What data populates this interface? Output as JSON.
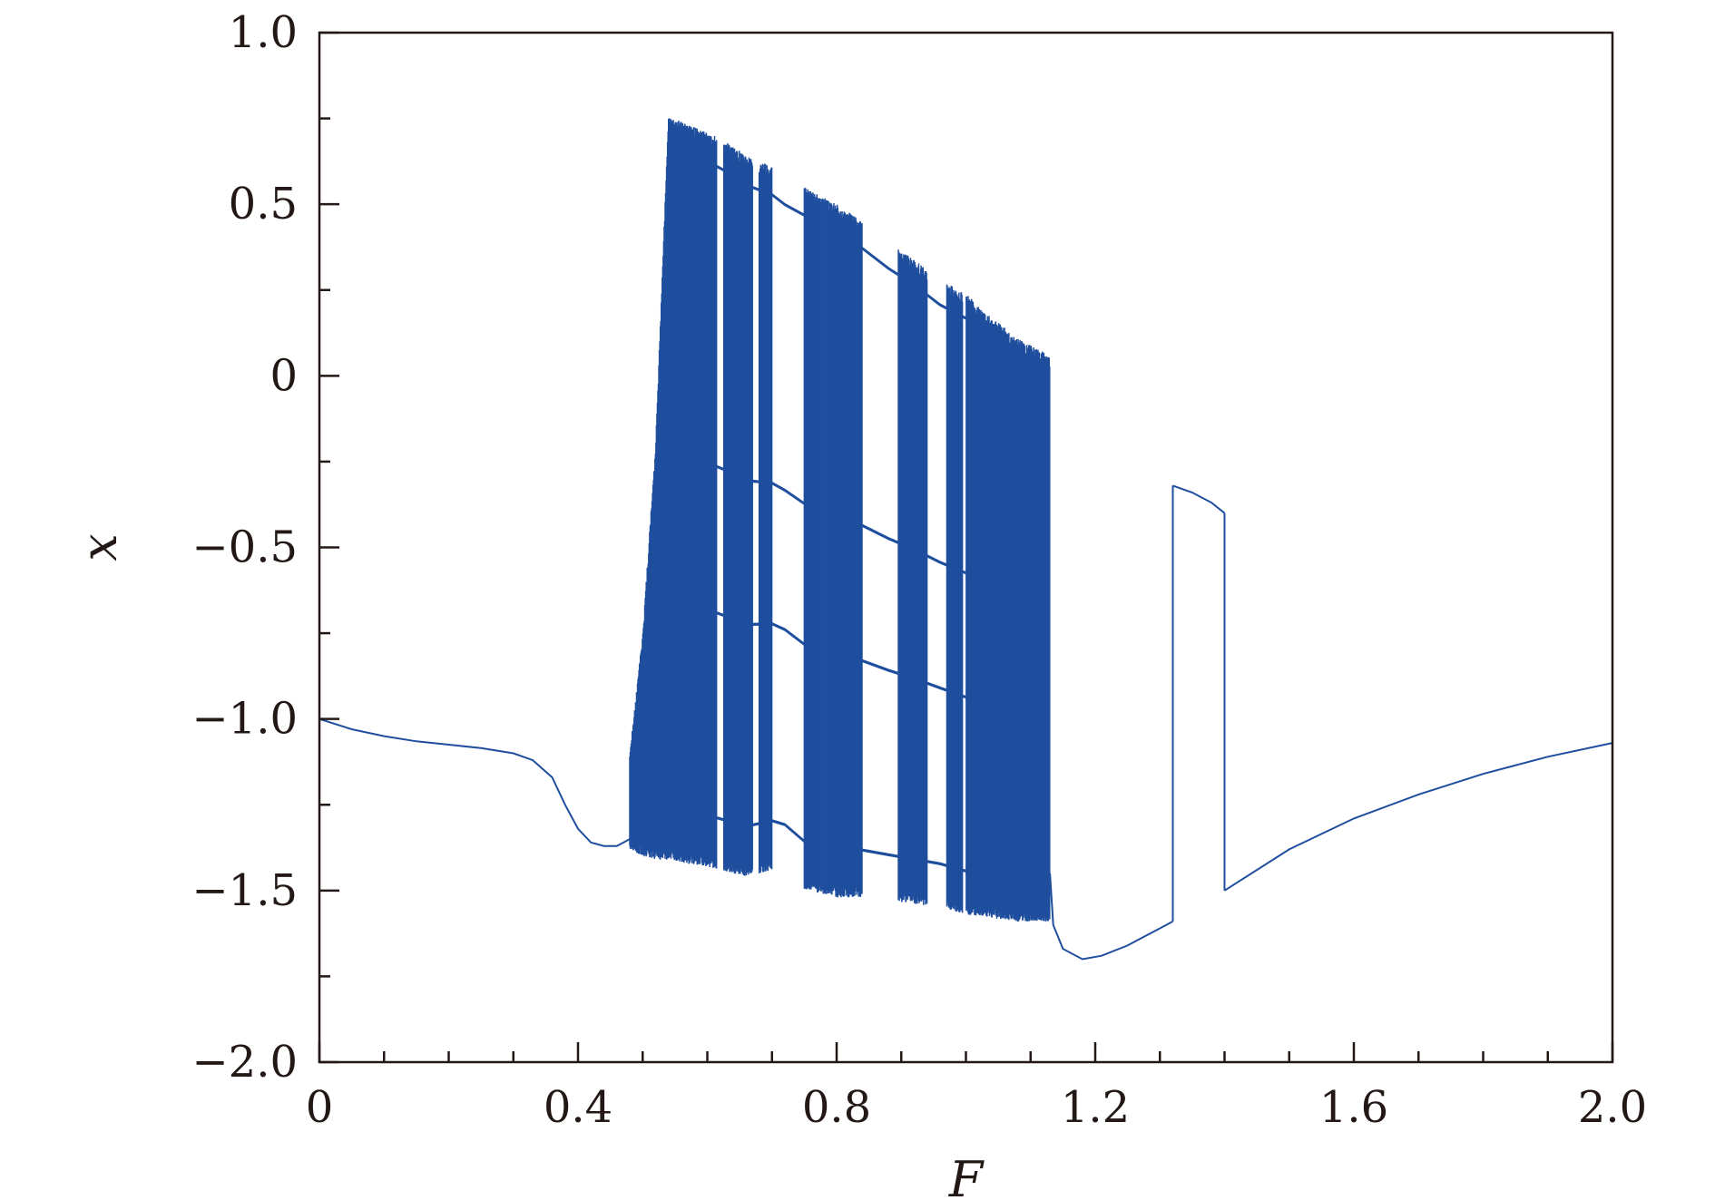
{
  "chart_data": {
    "type": "bifurcation-scatter",
    "title": "",
    "xlabel": "F",
    "ylabel": "x",
    "xlim": [
      0,
      2.0
    ],
    "ylim": [
      -2.0,
      1.0
    ],
    "grid": false,
    "legend": "none",
    "x_major_ticks": [
      0,
      0.4,
      0.8,
      1.2,
      1.6,
      2.0
    ],
    "x_tick_labels": [
      "0",
      "0.4",
      "0.8",
      "1.2",
      "1.6",
      "2.0"
    ],
    "x_minor_ticks": [
      0.1,
      0.2,
      0.3,
      0.5,
      0.6,
      0.7,
      0.9,
      1.0,
      1.1,
      1.3,
      1.4,
      1.5,
      1.7,
      1.8,
      1.9
    ],
    "y_major_ticks": [
      -2.0,
      -1.5,
      -1.0,
      -0.5,
      0,
      0.5,
      1.0
    ],
    "y_tick_labels": [
      "−2.0",
      "−1.5",
      "−1.0",
      "−0.5",
      "0",
      "0.5",
      "1.0"
    ],
    "y_minor_ticks": [
      -1.75,
      -1.25,
      -0.75,
      -0.25,
      0.25,
      0.75
    ],
    "series_color": "#1f4e9e",
    "axis_color": "#231815",
    "periodic_branches": [
      {
        "segment": "low-F period-1",
        "x": [
          0,
          0.05,
          0.1,
          0.15,
          0.2,
          0.25,
          0.3,
          0.33,
          0.36,
          0.38,
          0.4,
          0.42,
          0.44,
          0.46,
          0.48
        ],
        "y": [
          -1.0,
          -1.03,
          -1.05,
          -1.065,
          -1.075,
          -1.085,
          -1.1,
          -1.12,
          -1.17,
          -1.25,
          -1.32,
          -1.36,
          -1.37,
          -1.37,
          -1.35
        ]
      },
      {
        "segment": "post-chaos period-1",
        "x": [
          1.13,
          1.135,
          1.15,
          1.18,
          1.21,
          1.25,
          1.28,
          1.3,
          1.32
        ],
        "y": [
          -1.45,
          -1.6,
          -1.67,
          -1.7,
          -1.69,
          -1.66,
          -1.63,
          -1.61,
          -1.59
        ]
      },
      {
        "segment": "window upper branch",
        "x": [
          1.32,
          1.35,
          1.38,
          1.4
        ],
        "y": [
          -0.32,
          -0.34,
          -0.37,
          -0.4
        ]
      },
      {
        "segment": "high-F period-1",
        "x": [
          1.4,
          1.5,
          1.6,
          1.7,
          1.8,
          1.9,
          2.0
        ],
        "y": [
          -1.5,
          -1.38,
          -1.29,
          -1.22,
          -1.16,
          -1.11,
          -1.07
        ]
      }
    ],
    "chaotic_envelope": {
      "x": [
        0.48,
        0.5,
        0.52,
        0.54,
        0.56,
        0.6,
        0.64,
        0.66,
        0.7,
        0.72,
        0.75,
        0.78,
        0.8,
        0.84,
        0.88,
        0.92,
        0.96,
        1.0,
        1.04,
        1.08,
        1.13
      ],
      "upper": [
        -1.1,
        -0.75,
        -0.2,
        0.76,
        0.74,
        0.71,
        0.67,
        0.64,
        0.61,
        0.58,
        0.55,
        0.52,
        0.5,
        0.45,
        0.39,
        0.34,
        0.28,
        0.24,
        0.17,
        0.11,
        0.06
      ],
      "lower": [
        -1.38,
        -1.4,
        -1.41,
        -1.41,
        -1.42,
        -1.43,
        -1.45,
        -1.46,
        -1.44,
        -1.45,
        -1.5,
        -1.51,
        -1.52,
        -1.52,
        -1.53,
        -1.54,
        -1.55,
        -1.57,
        -1.58,
        -1.59,
        -1.59
      ]
    },
    "periodic_windows": [
      {
        "x_start": 0.615,
        "x_end": 0.625
      },
      {
        "x_start": 0.67,
        "x_end": 0.68
      },
      {
        "x_start": 0.7,
        "x_end": 0.75
      },
      {
        "x_start": 0.84,
        "x_end": 0.895
      },
      {
        "x_start": 0.94,
        "x_end": 0.97
      },
      {
        "x_start": 0.995,
        "x_end": 1.0
      }
    ],
    "window_transitions": [
      {
        "x": 1.32,
        "y_from": -1.59,
        "y_to": -0.32
      },
      {
        "x": 1.4,
        "y_from": -0.4,
        "y_to": -1.5
      }
    ]
  }
}
